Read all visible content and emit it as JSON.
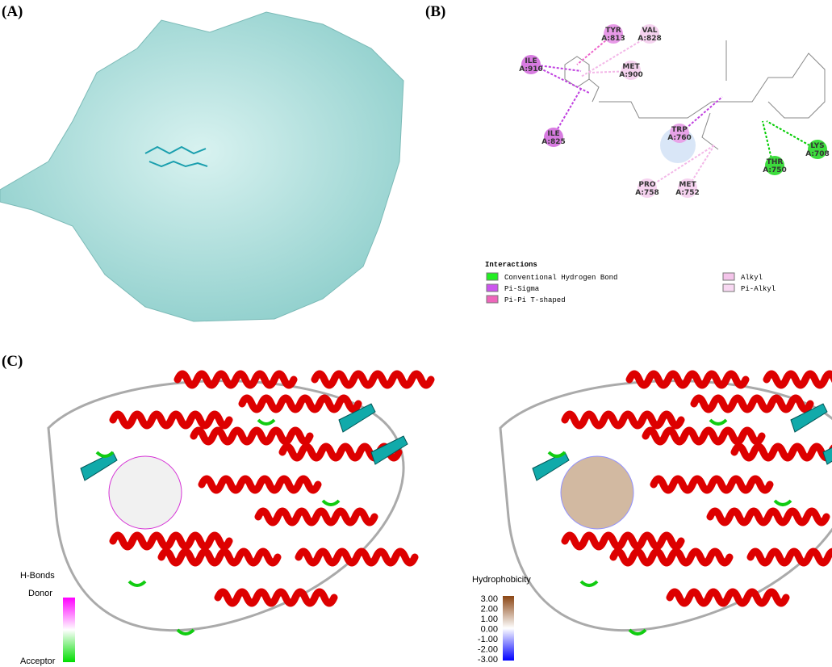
{
  "panels": {
    "a": {
      "label": "(A)"
    },
    "b": {
      "label": "(B)",
      "residues": [
        {
          "name": "TYR",
          "id": "A:813"
        },
        {
          "name": "VAL",
          "id": "A:828"
        },
        {
          "name": "ILE",
          "id": "A:910"
        },
        {
          "name": "MET",
          "id": "A:900"
        },
        {
          "name": "ILE",
          "id": "A:825"
        },
        {
          "name": "TRP",
          "id": "A:760"
        },
        {
          "name": "THR",
          "id": "A:750"
        },
        {
          "name": "LYS",
          "id": "A:708"
        },
        {
          "name": "PRO",
          "id": "A:758"
        },
        {
          "name": "MET",
          "id": "A:752"
        }
      ],
      "interactions": {
        "title": "Interactions",
        "items": [
          "Conventional Hydrogen Bond",
          "Pi-Sigma",
          "Pi-Pi T-shaped",
          "Alkyl",
          "Pi-Alkyl"
        ]
      }
    },
    "c": {
      "label": "(C)",
      "hbonds": {
        "title": "H-Bonds",
        "donor": "Donor",
        "acceptor": "Acceptor"
      },
      "hydrophobicity": {
        "title": "Hydrophobicity",
        "ticks": [
          "3.00",
          "2.00",
          "1.00",
          "0.00",
          "-1.00",
          "-2.00",
          "-3.00"
        ]
      }
    }
  }
}
